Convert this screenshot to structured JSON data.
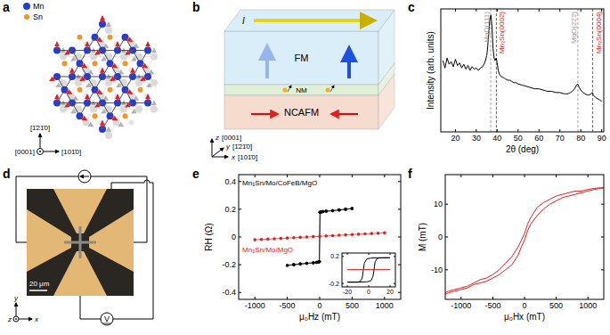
{
  "panel_labels": [
    "a",
    "b",
    "c",
    "d",
    "e",
    "f"
  ],
  "crystal": {
    "legend": [
      {
        "label": "Mn",
        "color": "#1f3fd0"
      },
      {
        "label": "Sn",
        "color": "#f0962a"
      }
    ],
    "directions": {
      "up": "[1̄21̄0]",
      "out": "[0001]",
      "right": "[101̄0]"
    }
  },
  "device": {
    "current": "I",
    "layers": [
      {
        "label": "FM",
        "color": "#d9eef8"
      },
      {
        "label": "NM",
        "color": "#dff0d6"
      },
      {
        "label": "NCAFM",
        "color": "#f6dccf"
      }
    ],
    "axes": [
      {
        "name": "z",
        "direction": "[0001]"
      },
      {
        "name": "y",
        "direction": "[1̄21̄0]"
      },
      {
        "name": "x",
        "direction": "[101̄0]"
      }
    ]
  },
  "micrograph": {
    "scale_bar": "20 μm",
    "meter": "V",
    "axes": [
      "y",
      "z",
      "x"
    ]
  },
  "chart_data": [
    {
      "type": "line",
      "x_label": "2θ (deg)",
      "y_label": "Intensity (arb. units)",
      "color": "#000000",
      "x": [
        14,
        15,
        16,
        17,
        18,
        19,
        20,
        21,
        22,
        23,
        24,
        25,
        26,
        27,
        28,
        29,
        30,
        31,
        32,
        33,
        34,
        35,
        35.5,
        36,
        36.5,
        37,
        37.5,
        38,
        38.5,
        39,
        39.5,
        40,
        40.5,
        41,
        42,
        43,
        44,
        45,
        46,
        47,
        48,
        49,
        50,
        52,
        54,
        56,
        58,
        60,
        62,
        64,
        66,
        68,
        70,
        72,
        74,
        75,
        76,
        77,
        78,
        78.5,
        79,
        80,
        81,
        82,
        83,
        84,
        85,
        85.5,
        86,
        87,
        88,
        89,
        90
      ],
      "values": [
        58,
        52,
        60,
        55,
        57,
        53,
        59,
        54,
        56,
        52,
        55,
        51,
        54,
        50,
        53,
        51,
        52,
        50,
        52,
        53,
        56,
        62,
        70,
        82,
        92,
        95,
        85,
        68,
        60,
        58,
        60,
        56,
        50,
        47,
        45,
        44,
        43,
        42,
        42,
        41,
        40,
        40,
        39,
        38,
        37,
        36,
        35,
        35,
        34,
        33,
        33,
        32,
        32,
        31,
        31,
        32,
        33,
        35,
        38,
        39,
        37,
        34,
        32,
        31,
        30,
        30,
        31,
        32,
        30,
        28,
        27,
        26,
        25
      ],
      "xlim": [
        13,
        91
      ],
      "xticks": [
        20,
        30,
        40,
        50,
        60,
        70,
        80,
        90
      ],
      "ylim": [
        0,
        100
      ],
      "tick_labels": "x",
      "annotations": [
        {
          "x": 36.9,
          "text": "MgO(111)",
          "color": "#999999"
        },
        {
          "x": 39.6,
          "text": "Mn₃Sn(0002)",
          "color": "#e02020"
        },
        {
          "x": 78.6,
          "text": "MgO(222)",
          "color": "#999999"
        },
        {
          "x": 85.7,
          "text": "Mn₃Sn(0004)",
          "color": "#e02020"
        }
      ]
    },
    {
      "type": "line",
      "x_label": "μ₀Hz (mT)",
      "y_label": "RH (Ω)",
      "xlim": [
        -1250,
        1250
      ],
      "xticks": [
        -1000,
        -500,
        0,
        500,
        1000
      ],
      "ylim": [
        -0.45,
        0.45
      ],
      "yticks": [
        -0.4,
        -0.2,
        0,
        0.2,
        0.4
      ],
      "series": [
        {
          "name": "Mn₃Sn/Mo/CoFeB/MgO",
          "color": "#000000",
          "marker": "circle",
          "x": [
            500,
            400,
            300,
            200,
            100,
            50,
            20,
            5,
            -5,
            -20,
            -50,
            -100,
            -200,
            -300,
            -400,
            -500,
            -400,
            -300,
            -200,
            -100,
            -50,
            -20,
            -5,
            5,
            20,
            50,
            100,
            200,
            300,
            400,
            500
          ],
          "values": [
            0.205,
            0.2,
            0.195,
            0.19,
            0.186,
            0.183,
            0.18,
            0.178,
            -0.178,
            -0.18,
            -0.183,
            -0.186,
            -0.19,
            -0.195,
            -0.2,
            -0.205,
            -0.2,
            -0.195,
            -0.19,
            -0.186,
            -0.183,
            -0.18,
            -0.178,
            0.178,
            0.18,
            0.183,
            0.186,
            0.19,
            0.195,
            0.2,
            0.205
          ]
        },
        {
          "name": "Mn₃Sn/Mo/MgO",
          "color": "#e02020",
          "marker": "circle",
          "x": [
            -1000,
            -900,
            -800,
            -700,
            -600,
            -500,
            -400,
            -300,
            -200,
            -100,
            0,
            100,
            200,
            300,
            400,
            500,
            600,
            700,
            800,
            900,
            1000
          ],
          "values": [
            -0.02,
            -0.0175,
            -0.015,
            -0.0125,
            -0.01,
            -0.0075,
            -0.005,
            -0.0025,
            0,
            0.0025,
            0.005,
            0.0075,
            0.01,
            0.0125,
            0.015,
            0.0175,
            0.02,
            0.0225,
            0.025,
            0.0275,
            0.03
          ]
        }
      ],
      "inset": {
        "type": "line",
        "xlim": [
          -25,
          25
        ],
        "xticks": [
          -20,
          0,
          20
        ],
        "ylim": [
          -0.25,
          0.25
        ],
        "yticks": [
          -0.2,
          0.2
        ],
        "series": [
          {
            "color": "#000000",
            "x": [
              20,
              15,
              10,
              5,
              2,
              0,
              -2,
              -4,
              -5,
              -6,
              -8,
              -10,
              -15,
              -20,
              -20,
              -15,
              -10,
              -5,
              -2,
              0,
              2,
              4,
              5,
              6,
              8,
              10,
              15,
              20
            ],
            "values": [
              0.18,
              0.18,
              0.18,
              0.178,
              0.175,
              0.17,
              0.16,
              0.1,
              0,
              -0.12,
              -0.17,
              -0.178,
              -0.18,
              -0.18,
              -0.18,
              -0.18,
              -0.18,
              -0.178,
              -0.175,
              -0.17,
              -0.16,
              -0.1,
              0,
              0.12,
              0.17,
              0.178,
              0.18,
              0.18
            ]
          },
          {
            "color": "#e02020",
            "x": [
              -20,
              20
            ],
            "values": [
              0.005,
              0.005
            ]
          }
        ]
      }
    },
    {
      "type": "line",
      "x_label": "μ₀Hx (mT)",
      "y_label": "M (mT)",
      "xlim": [
        -1250,
        1250
      ],
      "xticks": [
        -1000,
        -500,
        0,
        500,
        1000
      ],
      "ylim": [
        -19,
        19
      ],
      "yticks": [
        -10,
        0,
        10
      ],
      "series": [
        {
          "color": "#e02020",
          "x": [
            -1250,
            -1200,
            -1100,
            -1000,
            -900,
            -800,
            -700,
            -600,
            -500,
            -400,
            -300,
            -200,
            -100,
            -50,
            0,
            50,
            100,
            200,
            300,
            400,
            500,
            600,
            700,
            800,
            900,
            1000,
            1100,
            1200,
            1250,
            1200,
            1100,
            1000,
            900,
            800,
            700,
            600,
            500,
            400,
            300,
            200,
            100,
            50,
            0,
            -50,
            -100,
            -200,
            -300,
            -400,
            -500,
            -600,
            -700,
            -800,
            -900,
            -1000,
            -1100,
            -1200,
            -1250
          ],
          "values": [
            -17.5,
            -17,
            -16.5,
            -16,
            -15.5,
            -14.5,
            -14,
            -13.5,
            -12.5,
            -11.5,
            -10,
            -8.5,
            -5.5,
            -3,
            -1,
            2,
            4,
            6.5,
            8.5,
            10,
            11,
            12,
            12.5,
            13,
            13.5,
            14,
            14.5,
            14.8,
            15,
            15,
            14.8,
            14.5,
            14,
            14,
            13.5,
            13,
            12.5,
            11.5,
            10.5,
            9,
            6,
            4,
            1,
            -1,
            -3,
            -6,
            -8,
            -10,
            -11.5,
            -12.5,
            -13,
            -14,
            -15,
            -15.5,
            -16,
            -16.5,
            -17
          ]
        }
      ]
    }
  ]
}
